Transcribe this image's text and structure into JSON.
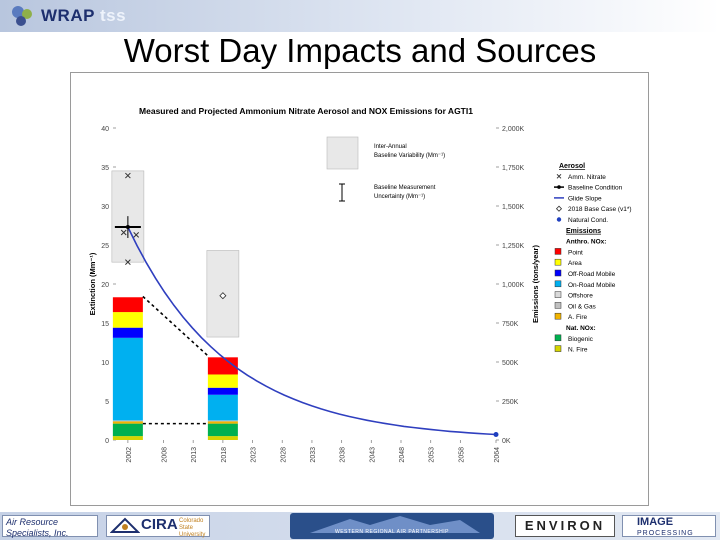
{
  "header": {
    "brand": "WRAP",
    "brand_suffix": "tss",
    "page_title": "Worst Day Impacts and Sources"
  },
  "footer": {
    "ars_line1": "Air Resource",
    "ars_line2": "Specialists, Inc.",
    "cira": "CIRA",
    "cira_sub": "Colorado State University",
    "wrap": "WESTERN REGIONAL AIR PARTNERSHIP",
    "environ": "ENVIRON",
    "image": "IMAGE",
    "image_sub": "PROCESSING"
  },
  "colors": {
    "glide_line": "#2f3fbf",
    "point": "#ff0000",
    "area": "#ffff00",
    "offroad": "#0000ff",
    "onroad": "#00b0f0",
    "offshore": "#d9d9d9",
    "oilgas": "#c0c0c0",
    "afire": "#f2b400",
    "biogenic": "#00b050",
    "nfire": "#d4d400"
  },
  "chart_data": {
    "type": "bar",
    "title": "Measured and Projected Ammonium Nitrate Aerosol and NOX Emissions for AGTI1",
    "ylabel": "Extinction (Mm⁻¹)",
    "y2label": "Emissions (tons/year)",
    "ylim": [
      0,
      40
    ],
    "y2lim": [
      0,
      2000000
    ],
    "yticks": [
      "0",
      "5",
      "10",
      "15",
      "20",
      "25",
      "30",
      "35",
      "40"
    ],
    "y2ticks": [
      "0K",
      "250K",
      "500K",
      "750K",
      "1,000K",
      "1,250K",
      "1,500K",
      "1,750K",
      "2,000K"
    ],
    "xlim": [
      2000,
      2064
    ],
    "xticks": [
      "2002",
      "2008",
      "2013",
      "2018",
      "2023",
      "2028",
      "2033",
      "2038",
      "2043",
      "2048",
      "2053",
      "2058",
      "2064"
    ],
    "variability_boxes": [
      {
        "x": 2002,
        "low": 22.8,
        "high": 34.5
      },
      {
        "x": 2018,
        "low": 13.2,
        "high": 24.3
      }
    ],
    "variability_legend_label": "Inter-Annual Baseline Variability (Mm⁻¹)",
    "measurement_legend_label": "Baseline Measurement Uncertainty (Mm⁻¹)",
    "amm_nitrate_points": [
      {
        "x": 2002,
        "y": 33.9
      },
      {
        "x": 2001.3,
        "y": 26.6
      },
      {
        "x": 2003.4,
        "y": 26.3
      },
      {
        "x": 2002,
        "y": 22.8
      }
    ],
    "baseline_condition": {
      "x": 2002,
      "y": 27.3,
      "err_low": 25.9,
      "err_high": 28.7
    },
    "glide_slope": {
      "x": [
        2002,
        2064
      ],
      "y": [
        27.3,
        0.7
      ]
    },
    "base_case_2018": {
      "x": 2018,
      "y": 18.5
    },
    "natural_cond": {
      "x": 2064,
      "y": 0.7
    },
    "emission_bars": [
      {
        "x": 2002,
        "label": "2002",
        "segments": [
          {
            "name": "N. Fire",
            "value": 25000
          },
          {
            "name": "Biogenic",
            "value": 80000
          },
          {
            "name": "A. Fire",
            "value": 15000
          },
          {
            "name": "Oil & Gas",
            "value": 2000
          },
          {
            "name": "Offshore",
            "value": 3000
          },
          {
            "name": "On-Road Mobile",
            "value": 530000
          },
          {
            "name": "Off-Road Mobile",
            "value": 65000
          },
          {
            "name": "Area",
            "value": 100000
          },
          {
            "name": "Point",
            "value": 95000
          }
        ]
      },
      {
        "x": 2018,
        "label": "2018",
        "segments": [
          {
            "name": "N. Fire",
            "value": 25000
          },
          {
            "name": "Biogenic",
            "value": 80000
          },
          {
            "name": "A. Fire",
            "value": 15000
          },
          {
            "name": "Oil & Gas",
            "value": 2000
          },
          {
            "name": "Offshore",
            "value": 3000
          },
          {
            "name": "On-Road Mobile",
            "value": 165000
          },
          {
            "name": "Off-Road Mobile",
            "value": 45000
          },
          {
            "name": "Area",
            "value": 85000
          },
          {
            "name": "Point",
            "value": 110000
          }
        ]
      }
    ],
    "dotted_links": [
      {
        "from": [
          2002,
          920000
        ],
        "to": [
          2018,
          540000
        ]
      },
      {
        "from": [
          2002,
          105000
        ],
        "to": [
          2018,
          105000
        ]
      }
    ],
    "legend": {
      "aerosol_header": "Aerosol",
      "aerosol_items": [
        "Amm. Nitrate",
        "Baseline Condition",
        "Glide Slope",
        "2018 Base Case (v1*)",
        "Natural Cond."
      ],
      "emissions_header": "Emissions",
      "anthro_header": "Anthro. NOx:",
      "anthro_items": [
        "Point",
        "Area",
        "Off-Road Mobile",
        "On-Road Mobile",
        "Offshore",
        "Oil & Gas",
        "A. Fire"
      ],
      "natural_header": "Nat. NOx:",
      "natural_items": [
        "Biogenic",
        "N. Fire"
      ]
    }
  }
}
